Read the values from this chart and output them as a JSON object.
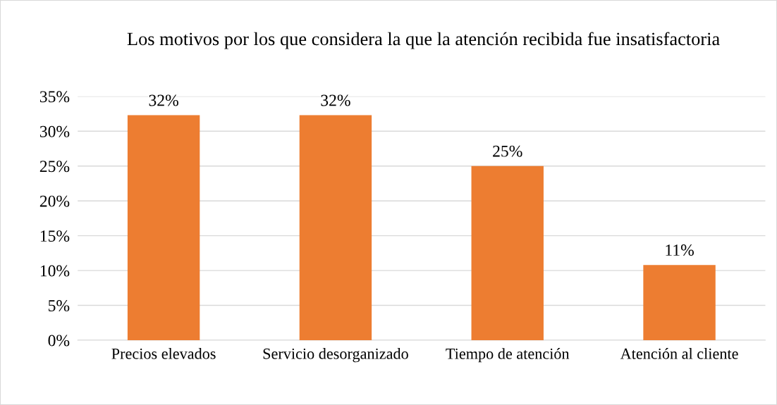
{
  "chart_data": {
    "type": "bar",
    "title": "Los motivos por los que considera la que la atención recibida fue insatisfactoria",
    "categories": [
      "Precios elevados",
      "Servicio desorganizado",
      "Tiempo de atención",
      "Atención al cliente"
    ],
    "values": [
      32.3,
      32.3,
      25,
      10.8
    ],
    "value_labels": [
      "32%",
      "32%",
      "25%",
      "11%"
    ],
    "color": "#ed7d31",
    "ylim": [
      0,
      35
    ],
    "yticks": [
      {
        "value": 0,
        "label": "0%"
      },
      {
        "value": 5,
        "label": "5%"
      },
      {
        "value": 10,
        "label": "10%"
      },
      {
        "value": 15,
        "label": "15%"
      },
      {
        "value": 20,
        "label": "20%"
      },
      {
        "value": 25,
        "label": "25%"
      },
      {
        "value": 30,
        "label": "30%"
      },
      {
        "value": 35,
        "label": "35%"
      }
    ],
    "grid": "y"
  }
}
